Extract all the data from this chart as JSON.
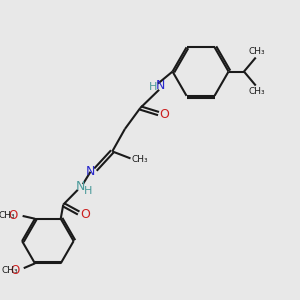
{
  "bg_color": "#e8e8e8",
  "bond_color": "#1a1a1a",
  "N_color": "#4a9a9a",
  "N_color2": "#2828cc",
  "O_color": "#cc2020",
  "line_width": 1.5,
  "dbo": 0.055,
  "xlim": [
    0,
    10
  ],
  "ylim": [
    0,
    10
  ]
}
